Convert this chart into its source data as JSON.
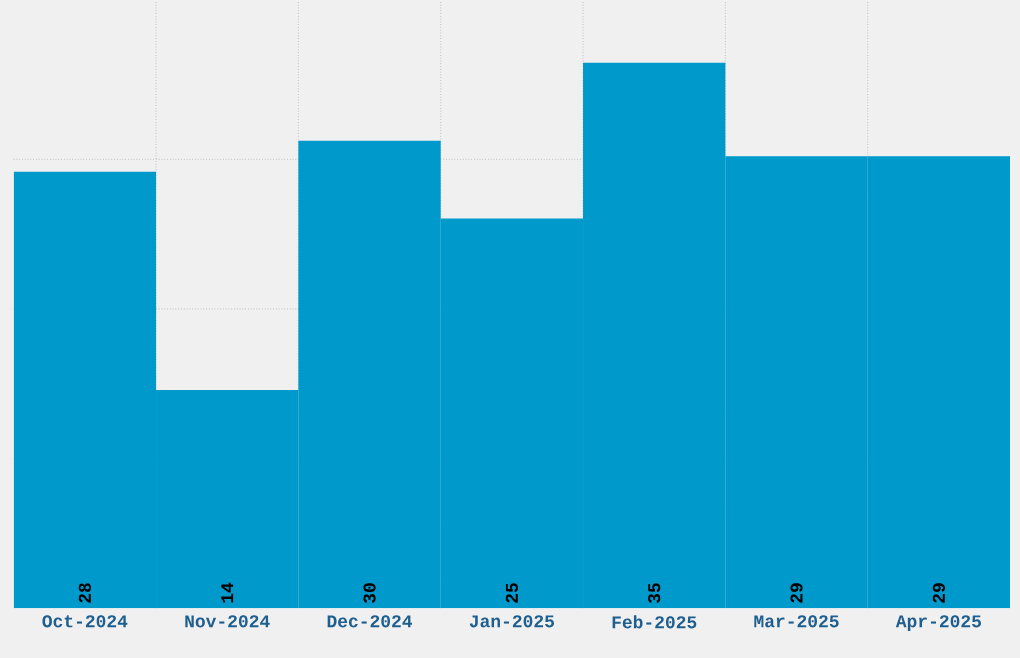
{
  "chart_data": {
    "type": "bar",
    "categories": [
      "Oct-2024",
      "Nov-2024",
      "Dec-2024",
      "Jan-2025",
      "Feb-2025",
      "Mar-2025",
      "Apr-2025"
    ],
    "values": [
      28,
      14,
      30,
      25,
      35,
      29,
      29
    ],
    "color": "#0099cc",
    "ylim": [
      0,
      39
    ],
    "yticks": [
      {
        "value": 9.6,
        "label": null
      },
      {
        "value": 19.2,
        "label": null
      },
      {
        "value": 28.8,
        "label": null
      }
    ],
    "tick_labels": "x",
    "grid": true,
    "data_labels": true
  }
}
